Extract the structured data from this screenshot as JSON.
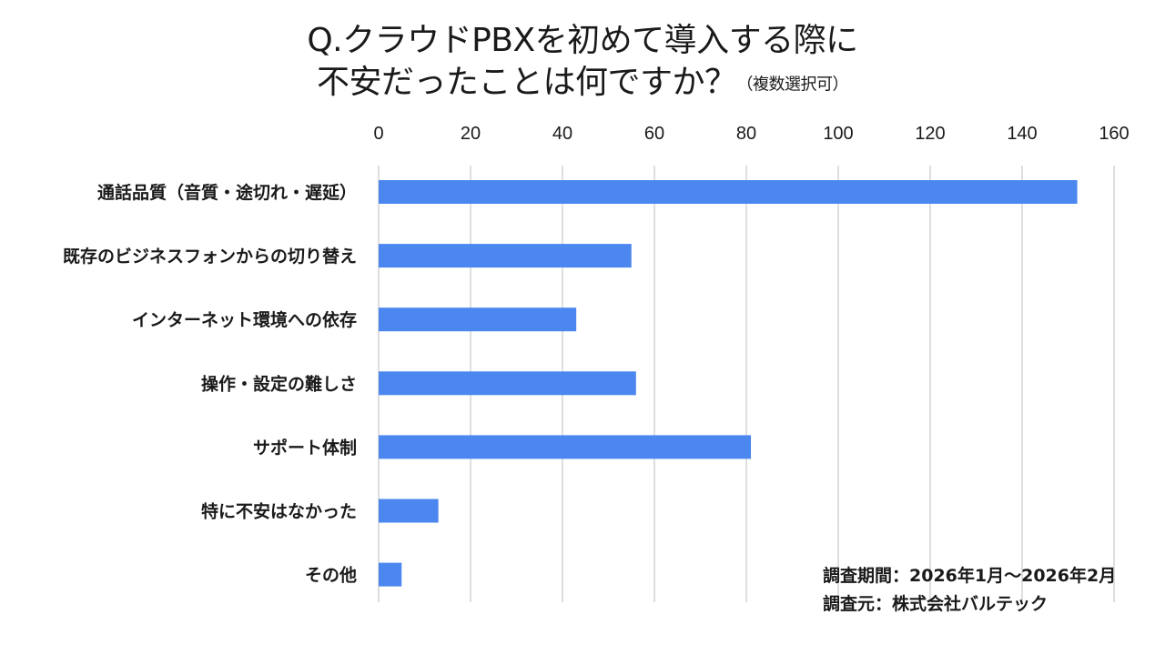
{
  "title": {
    "line1": "Q.クラウドPBXを初めて導入する際に",
    "line2": "不安だったことは何ですか？",
    "note": "（複数選択可）"
  },
  "notes": {
    "period": "調査期間：2026年1月～2026年2月",
    "source": "調査元：株式会社バルテック"
  },
  "chart_data": {
    "type": "bar",
    "orientation": "horizontal",
    "categories": [
      "通話品質（音質・途切れ・遅延）",
      "既存のビジネスフォンからの切り替え",
      "インターネット環境への依存",
      "操作・設定の難しさ",
      "サポート体制",
      "特に不安はなかった",
      "その他"
    ],
    "values": [
      152,
      55,
      43,
      56,
      81,
      13,
      5
    ],
    "xlim": [
      0,
      160
    ],
    "ticks": [
      0,
      20,
      40,
      60,
      80,
      100,
      120,
      140,
      160
    ],
    "x_axis_position": "top",
    "grid": true,
    "legend": "none",
    "bar_color": "#4b87ef",
    "grid_color": "#bdbdbd"
  }
}
